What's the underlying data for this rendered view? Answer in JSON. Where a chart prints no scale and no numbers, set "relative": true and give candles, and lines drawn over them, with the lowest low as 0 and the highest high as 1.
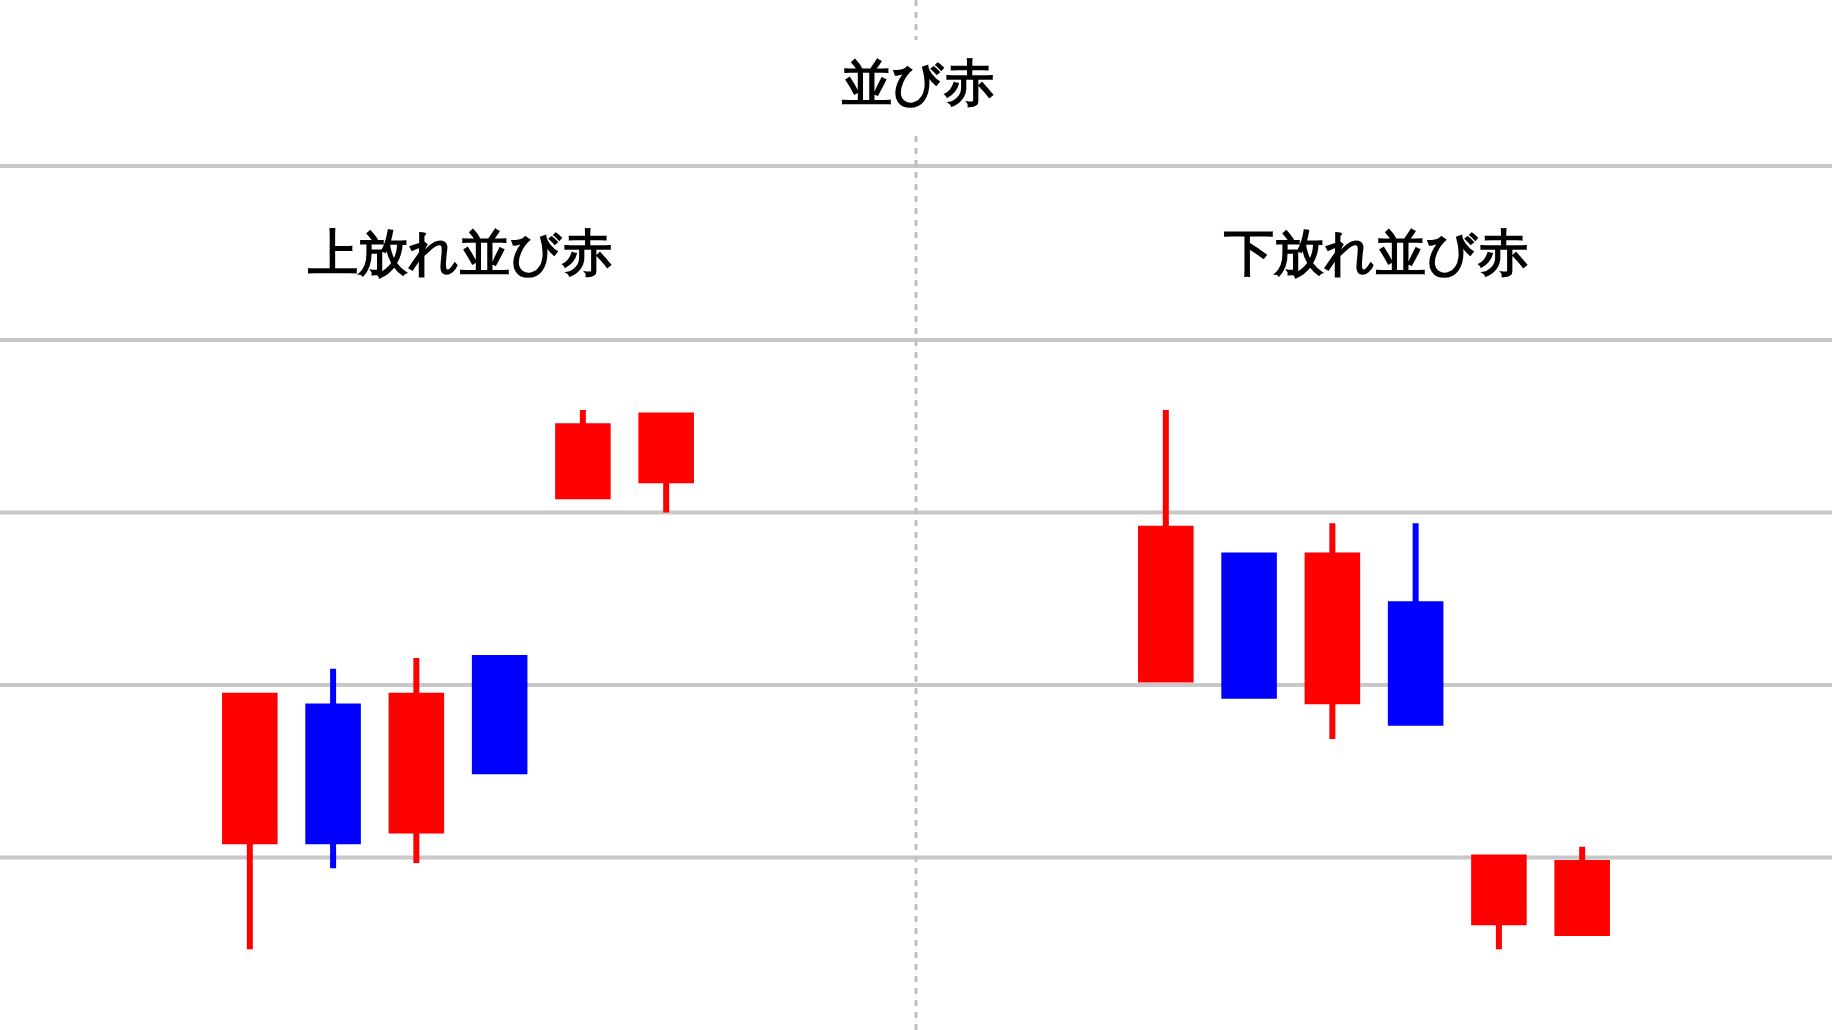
{
  "chart_data": [
    {
      "type": "other",
      "title": "並び赤"
    },
    {
      "type": "candlestick",
      "title": "上放れ並び赤",
      "categories": [
        null,
        null,
        null,
        null,
        null,
        null
      ],
      "ohlc": [
        [
          0.2,
          0.47,
          0,
          0.47
        ],
        [
          0.45,
          0.52,
          0.15,
          0.2
        ],
        [
          0.22,
          0.54,
          0.16,
          0.47
        ],
        [
          0.54,
          0.54,
          0.33,
          0.33
        ],
        [
          0.84,
          1,
          0.84,
          0.97
        ],
        [
          0.87,
          0.99,
          0.81,
          0.99
        ]
      ],
      "colors": [
        "#ff0000",
        "#0000ff",
        "#ff0000",
        "#0000ff",
        "#ff0000",
        "#ff0000"
      ],
      "relative": true,
      "grid": "y"
    },
    {
      "type": "candlestick",
      "title": "下放れ並び赤",
      "categories": [
        null,
        null,
        null,
        null,
        null,
        null
      ],
      "ohlc": [
        [
          0.5,
          1,
          0.5,
          0.78
        ],
        [
          0.73,
          0.73,
          0.47,
          0.47
        ],
        [
          0.46,
          0.79,
          0.39,
          0.73
        ],
        [
          0.64,
          0.79,
          0.42,
          0.42
        ],
        [
          0.05,
          0.17,
          0,
          0.17
        ],
        [
          0.03,
          0.19,
          0.03,
          0.16
        ]
      ],
      "colors": [
        "#ff0000",
        "#0000ff",
        "#ff0000",
        "#0000ff",
        "#ff0000",
        "#ff0000"
      ],
      "relative": true,
      "grid": "y"
    }
  ]
}
